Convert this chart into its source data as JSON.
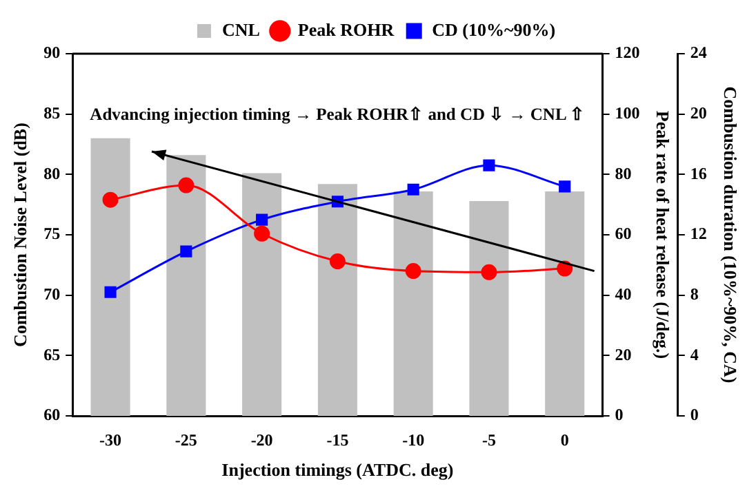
{
  "chart_data": {
    "type": "bar",
    "categories": [
      "-30",
      "-25",
      "-20",
      "-15",
      "-10",
      "-5",
      "0"
    ],
    "xlabel": "Injection timings (ATDC. deg)",
    "ylabel": "Combustion Noise Level (dB)",
    "y2label": "Peak rate of heat release (J/deg.)",
    "y3label": "Combustion duration (10%~90%, CA)",
    "ylim": [
      60,
      90
    ],
    "yticks": [
      60,
      65,
      70,
      75,
      80,
      85,
      90
    ],
    "y2lim": [
      0,
      120
    ],
    "y2ticks": [
      0,
      20,
      40,
      60,
      80,
      100,
      120
    ],
    "y3lim": [
      0,
      24
    ],
    "y3ticks": [
      0,
      4,
      8,
      12,
      16,
      20,
      24
    ],
    "legend": "top",
    "annotations": [
      "Advancing injection timing → Peak ROHR⇧ and CD ⇩ → CNL ⇧"
    ],
    "series": [
      {
        "name": "CNL",
        "color": "#c0c0c0",
        "values": [
          83,
          81.6,
          80.1,
          79.2,
          78.6,
          77.8,
          78.6
        ]
      },
      {
        "name": "Peak ROHR",
        "type": "line",
        "axis": "y2",
        "marker": "circle",
        "color": "#ff0000",
        "values": [
          71.6,
          76.4,
          60.4,
          51.2,
          48,
          47.6,
          48.8
        ]
      },
      {
        "name": "CD (10%~90%)",
        "type": "line",
        "axis": "y3",
        "marker": "square",
        "color": "#0000ff",
        "values": [
          8.2,
          10.9,
          13,
          14.2,
          15,
          16.6,
          15.2
        ]
      }
    ]
  }
}
